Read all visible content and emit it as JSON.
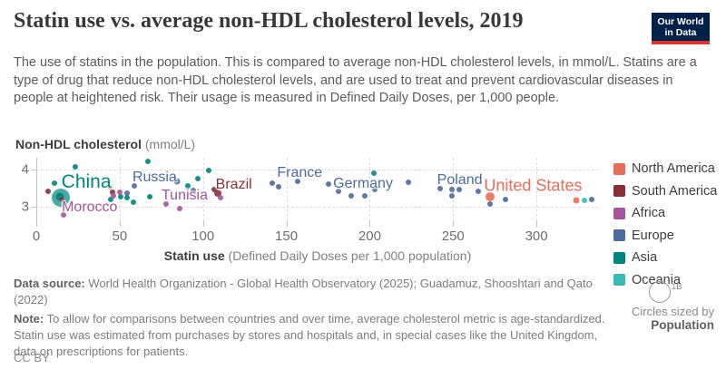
{
  "header": {
    "title": "Statin use vs. average non-HDL cholesterol levels, 2019",
    "logo": {
      "line1": "Our World",
      "line2": "in Data"
    }
  },
  "subtitle": "The use of statins in the population. This is compared to average non-HDL cholesterol levels, in mmol/L. Statins are a type of drug that reduce non-HDL cholesterol levels, and are used to treat and prevent cardiovascular diseases in people at heightened risk. Their usage is measured in Defined Daily Doses, per 1,000 people.",
  "legend": {
    "items": [
      {
        "label": "North America",
        "color": "#e56e5a"
      },
      {
        "label": "South America",
        "color": "#883039"
      },
      {
        "label": "Africa",
        "color": "#a2559c"
      },
      {
        "label": "Europe",
        "color": "#4c6a9c"
      },
      {
        "label": "Asia",
        "color": "#00847e"
      },
      {
        "label": "Oceania",
        "color": "#3cb8b2"
      }
    ]
  },
  "size_legend": {
    "value": "1B",
    "line1": "Circles sized by",
    "line2": "Population"
  },
  "chart_data": {
    "type": "scatter",
    "title": "Statin use vs. average non-HDL cholesterol levels, 2019",
    "xlabel_bold": "Statin use",
    "xlabel_rest": " (Defined Daily Doses per 1,000 population)",
    "ylabel_bold": "Non-HDL cholesterol",
    "ylabel_rest": " (mmol/L)",
    "x_ticks": [
      0,
      50,
      100,
      150,
      200,
      250,
      300
    ],
    "y_ticks": [
      3,
      4
    ],
    "xlim": [
      0,
      337.5
    ],
    "ylim": [
      2.46,
      4.37
    ],
    "grid": true,
    "legend_position": "right",
    "size_by": "Population",
    "series": [
      {
        "name": "Asia",
        "color": "#00847e",
        "points": [
          {
            "x": 14.7,
            "y": 3.24,
            "r": 10,
            "opacity": 0.7
          },
          {
            "x": 10.9,
            "y": 3.63
          },
          {
            "x": 14.2,
            "y": 3.27,
            "r": 4.5,
            "country": "China"
          },
          {
            "x": 23.4,
            "y": 4.07
          },
          {
            "x": 44.6,
            "y": 3.2
          },
          {
            "x": 50.6,
            "y": 3.27
          },
          {
            "x": 54.4,
            "y": 3.24
          },
          {
            "x": 58.3,
            "y": 3.12
          },
          {
            "x": 67.0,
            "y": 4.22
          },
          {
            "x": 68.0,
            "y": 3.27
          },
          {
            "x": 90.9,
            "y": 3.56
          },
          {
            "x": 96.9,
            "y": 3.76
          },
          {
            "x": 103.4,
            "y": 3.98
          },
          {
            "x": 202.5,
            "y": 3.9
          }
        ]
      },
      {
        "name": "South America",
        "color": "#883039",
        "points": [
          {
            "x": 7.1,
            "y": 3.41
          },
          {
            "x": 15.2,
            "y": 3.2,
            "r": 2.5
          },
          {
            "x": 45.7,
            "y": 3.39
          },
          {
            "x": 106.7,
            "y": 3.46
          },
          {
            "x": 108.9,
            "y": 3.37,
            "r": 4,
            "country": "Brazil"
          }
        ]
      },
      {
        "name": "North America",
        "color": "#e56e5a",
        "points": [
          {
            "x": 44.1,
            "y": 3.54
          },
          {
            "x": 272.2,
            "y": 3.27,
            "r": 5,
            "country": "United States"
          },
          {
            "x": 323.9,
            "y": 3.17,
            "r": 3.5
          }
        ]
      },
      {
        "name": "Oceania",
        "color": "#3cb8b2",
        "points": [
          {
            "x": 328.8,
            "y": 3.17
          }
        ]
      },
      {
        "name": "Europe",
        "color": "#4c6a9c",
        "points": [
          {
            "x": 54.4,
            "y": 3.37
          },
          {
            "x": 58.8,
            "y": 3.56
          },
          {
            "x": 84.4,
            "y": 3.68,
            "r": 3.5,
            "country": "Russia"
          },
          {
            "x": 94.2,
            "y": 3.44
          },
          {
            "x": 141.5,
            "y": 3.63
          },
          {
            "x": 145.3,
            "y": 3.54
          },
          {
            "x": 156.8,
            "y": 3.68,
            "country": "France"
          },
          {
            "x": 175.3,
            "y": 3.61
          },
          {
            "x": 181.3,
            "y": 3.41
          },
          {
            "x": 188.9,
            "y": 3.29
          },
          {
            "x": 197.1,
            "y": 3.29,
            "country": "Germany"
          },
          {
            "x": 203.1,
            "y": 3.46
          },
          {
            "x": 223.2,
            "y": 3.66
          },
          {
            "x": 242.2,
            "y": 3.49
          },
          {
            "x": 249.3,
            "y": 3.46,
            "country": "Poland"
          },
          {
            "x": 253.7,
            "y": 3.46
          },
          {
            "x": 249.3,
            "y": 3.29
          },
          {
            "x": 265.1,
            "y": 3.41
          },
          {
            "x": 272.2,
            "y": 3.07
          },
          {
            "x": 281.4,
            "y": 3.2
          },
          {
            "x": 333.2,
            "y": 3.2
          }
        ]
      },
      {
        "name": "Africa",
        "color": "#a2559c",
        "points": [
          {
            "x": 16.3,
            "y": 2.78,
            "country": "Morocco"
          },
          {
            "x": 46.3,
            "y": 3.29
          },
          {
            "x": 50.1,
            "y": 3.39
          },
          {
            "x": 77.8,
            "y": 3.07
          },
          {
            "x": 86.0,
            "y": 2.95,
            "country": "Tunisia"
          },
          {
            "x": 110.5,
            "y": 3.24
          }
        ]
      },
      {
        "name": "point_labels",
        "color": "",
        "points": []
      }
    ],
    "point_labels": [
      {
        "text": "China",
        "x": 30.0,
        "y": 3.66,
        "color": "#00847e",
        "size": 21
      },
      {
        "text": "Morocco",
        "x": 32.0,
        "y": 2.98,
        "color": "#a2559c",
        "size": 16
      },
      {
        "text": "Russia",
        "x": 71.0,
        "y": 3.78,
        "color": "#4c6a9c",
        "size": 16
      },
      {
        "text": "Tunisia",
        "x": 89.0,
        "y": 3.29,
        "color": "#a2559c",
        "size": 16
      },
      {
        "text": "Brazil",
        "x": 118.5,
        "y": 3.58,
        "color": "#883039",
        "size": 16
      },
      {
        "text": "France",
        "x": 158.0,
        "y": 3.9,
        "color": "#4c6a9c",
        "size": 16
      },
      {
        "text": "Germany",
        "x": 196.0,
        "y": 3.61,
        "color": "#4c6a9c",
        "size": 16
      },
      {
        "text": "Poland",
        "x": 254.0,
        "y": 3.71,
        "color": "#4c6a9c",
        "size": 16
      },
      {
        "text": "United States",
        "x": 298.0,
        "y": 3.56,
        "color": "#e56e5a",
        "size": 18
      }
    ]
  },
  "footer": {
    "data_source_label": "Data source:",
    "data_source_text": " World Health Organization - Global Health Observatory (2025); Guadamuz, Shooshtari and Qato (2022)",
    "note_label": "Note:",
    "note_text": " To allow for comparisons between countries and over time, average cholesterol metric is age-standardized. Statin use was estimated from purchases by stores and hospitals and, in special cases like the United Kingdom, data on prescriptions for patients.",
    "license": "CC BY"
  }
}
